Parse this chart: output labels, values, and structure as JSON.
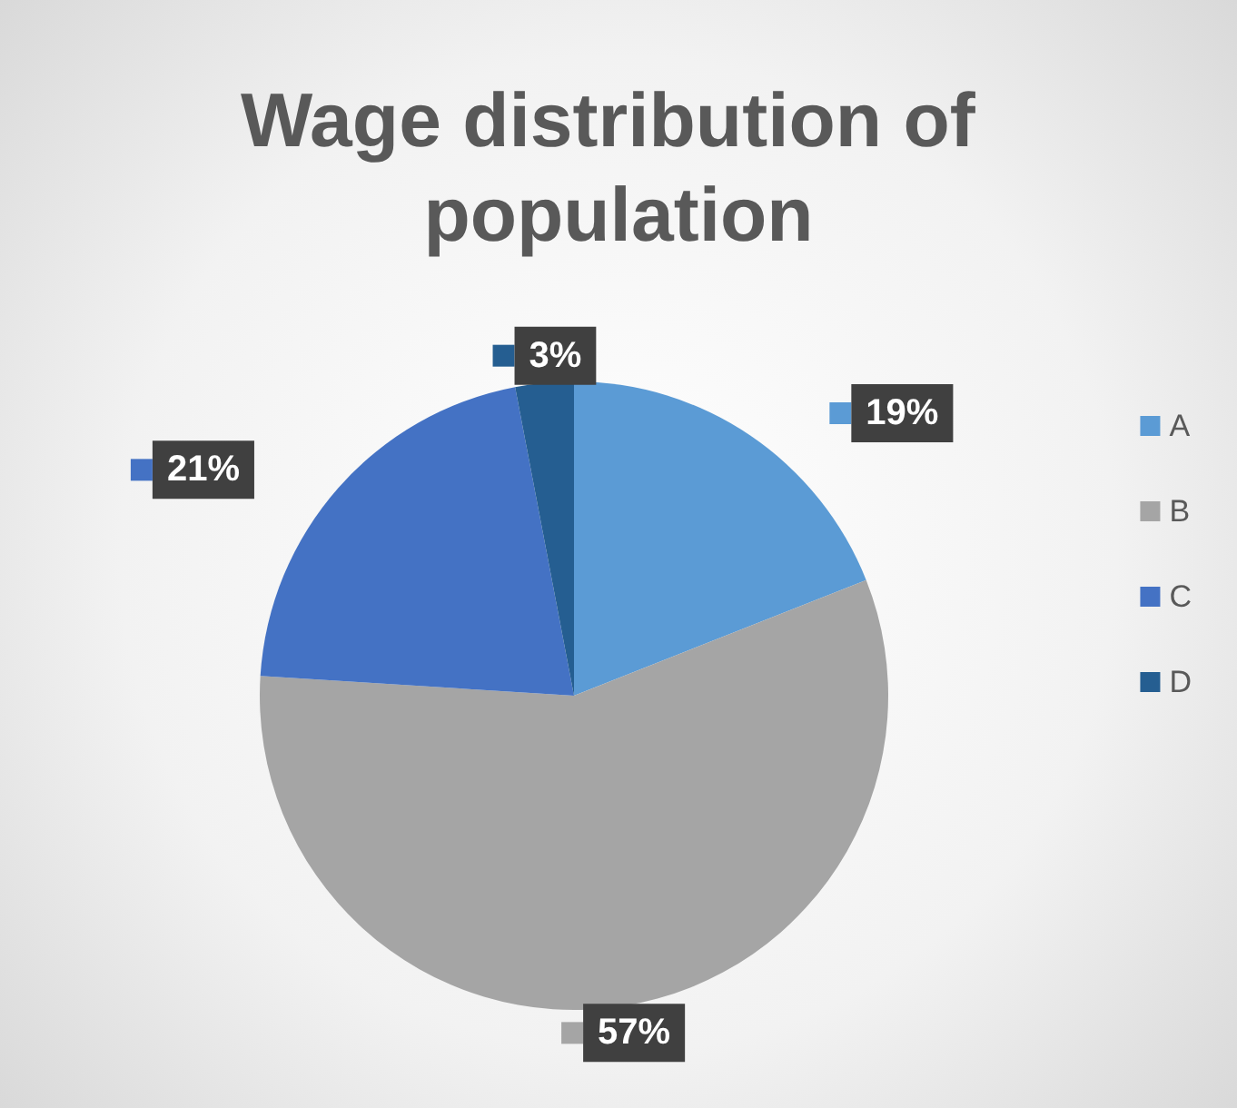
{
  "chart_data": {
    "type": "pie",
    "title": "Wage distribution of population",
    "categories": [
      "A",
      "B",
      "C",
      "D"
    ],
    "values": [
      19,
      57,
      21,
      3
    ],
    "value_labels": [
      "19%",
      "57%",
      "21%",
      "3%"
    ],
    "colors": [
      "#5b9bd5",
      "#a5a5a5",
      "#4472c4",
      "#255e91"
    ],
    "legend": "right"
  }
}
